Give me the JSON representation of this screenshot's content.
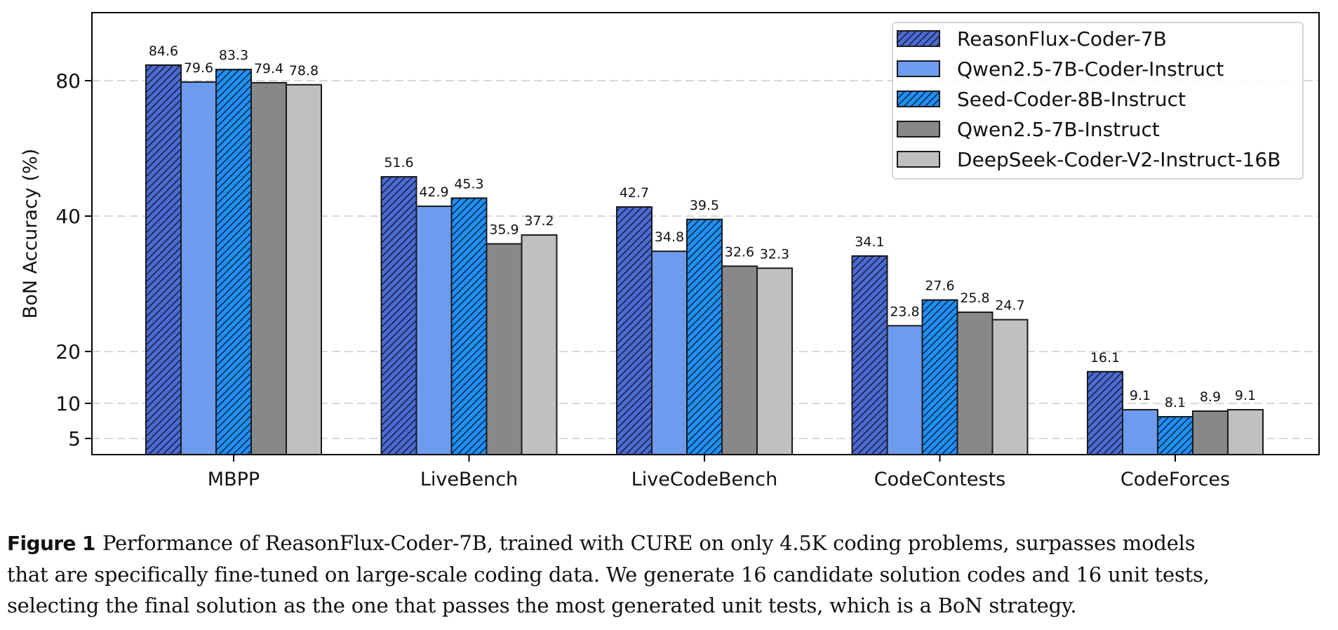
{
  "chart_data": {
    "type": "bar",
    "title": "",
    "xlabel": "",
    "ylabel": "BoN Accuracy (%)",
    "y_scale": "piecewise-linear between tick values",
    "yticks": [
      5,
      10,
      20,
      40,
      80
    ],
    "ylim": [
      3,
      100
    ],
    "grid": "horizontal dashed",
    "legend_position": "top-right",
    "categories": [
      "MBPP",
      "LiveBench",
      "LiveCodeBench",
      "CodeContests",
      "CodeForces"
    ],
    "series": [
      {
        "name": "ReasonFlux-Coder-7B",
        "color": "#4A6BD6",
        "hatch": true,
        "values": [
          84.6,
          51.6,
          42.7,
          34.1,
          16.1
        ]
      },
      {
        "name": "Qwen2.5-7B-Coder-Instruct",
        "color": "#6E9BEE",
        "hatch": false,
        "values": [
          79.6,
          42.9,
          34.8,
          23.8,
          9.1
        ]
      },
      {
        "name": "Seed-Coder-8B-Instruct",
        "color": "#1E8FFF",
        "hatch": true,
        "values": [
          83.3,
          45.3,
          39.5,
          27.6,
          8.1
        ]
      },
      {
        "name": "Qwen2.5-7B-Instruct",
        "color": "#888888",
        "hatch": false,
        "values": [
          79.4,
          35.9,
          32.6,
          25.8,
          8.9
        ]
      },
      {
        "name": "DeepSeek-Coder-V2-Instruct-16B",
        "color": "#C0C0C0",
        "hatch": false,
        "values": [
          78.8,
          37.2,
          32.3,
          24.7,
          9.1
        ]
      }
    ]
  },
  "caption": {
    "label": "Figure 1",
    "lines": [
      "Performance of ReasonFlux-Coder-7B, trained with CURE on only 4.5K coding problems, surpasses models",
      "that are specifically fine-tuned on large-scale coding data.  We generate 16 candidate solution codes and 16 unit tests,",
      "selecting the final solution as the one that passes the most generated unit tests, which is a BoN strategy."
    ]
  }
}
